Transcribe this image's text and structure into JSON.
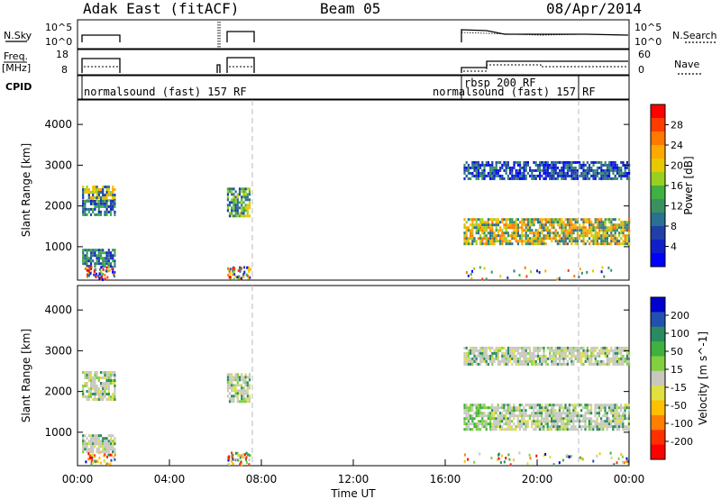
{
  "header": {
    "station": "Adak East (fitACF)",
    "beam": "Beam 05",
    "date": "08/Apr/2014"
  },
  "status_panels": {
    "nsky_label": "N.Sky",
    "nsearch_label": "N.Search",
    "nsky_ticks": [
      "10^5",
      "10^0"
    ],
    "nsearch_ticks": [
      "10^5",
      "10^0"
    ],
    "freq_label": "Freq.",
    "freq_unit": "[MHz]",
    "freq_ticks": [
      "18",
      "8"
    ],
    "nave_label": "Nave",
    "nave_ticks": [
      "60",
      "0"
    ],
    "cpid_label": "CPID",
    "cpid_segments": [
      {
        "label": "normalsound (fast) 157 RF",
        "start_h": 0.0
      },
      {
        "label": "normalsound (fast) 157 RF",
        "start_h": 17.25
      },
      {
        "label": "rbsp 200 RF",
        "start_h": 16.75
      }
    ]
  },
  "power_colorbar": {
    "title": "Power [dB]",
    "ticks": [
      "28",
      "24",
      "20",
      "16",
      "12",
      "8",
      "4"
    ],
    "colors": [
      "#ff0000",
      "#ff3c00",
      "#ff7800",
      "#ffa800",
      "#e8c800",
      "#98d020",
      "#40b040",
      "#3a9060",
      "#2a7090",
      "#2040a8",
      "#1020c8",
      "#0000ff"
    ]
  },
  "velocity_colorbar": {
    "title": "Velocity [m s^-1]",
    "ticks": [
      "200",
      "100",
      "50",
      "15",
      "-15",
      "-50",
      "-100",
      "-200"
    ],
    "colors": [
      "#0000d0",
      "#2050b0",
      "#2a8a60",
      "#40b040",
      "#80d040",
      "#c8c8c0",
      "#e0e040",
      "#ffc000",
      "#ff8000",
      "#ff3000",
      "#ff0000"
    ]
  },
  "chart_data": [
    {
      "type": "heatmap",
      "title": "Power",
      "xlabel": "",
      "ylabel": "Slant Range [km]",
      "ylim": [
        180,
        4600
      ],
      "xlim_hours": [
        0,
        24
      ],
      "yticks": [
        "1000",
        "2000",
        "3000",
        "4000"
      ],
      "echo_regions": [
        {
          "t0": 0.2,
          "t1": 1.6,
          "r0": 2150,
          "r1": 2500,
          "level": "16-20 dB"
        },
        {
          "t0": 0.2,
          "t1": 1.6,
          "r0": 1800,
          "r1": 2150,
          "level": "8-16 dB"
        },
        {
          "t0": 0.2,
          "t1": 1.6,
          "r0": 500,
          "r1": 950,
          "level": "8-16 dB"
        },
        {
          "t0": 6.5,
          "t1": 7.5,
          "r0": 1750,
          "r1": 2450,
          "level": "12-20 dB"
        },
        {
          "t0": 16.8,
          "t1": 24.0,
          "r0": 1100,
          "r1": 1700,
          "level": "16-28 dB"
        },
        {
          "t0": 16.8,
          "t1": 24.0,
          "r0": 2650,
          "r1": 3100,
          "level": "4-12 dB"
        }
      ]
    },
    {
      "type": "heatmap",
      "title": "Velocity",
      "xlabel": "Time UT",
      "ylabel": "Slant Range [km]",
      "ylim": [
        180,
        4600
      ],
      "xlim_hours": [
        0,
        24
      ],
      "yticks": [
        "1000",
        "2000",
        "3000",
        "4000"
      ],
      "xticks": [
        "00:00",
        "04:00",
        "08:00",
        "12:00",
        "16:00",
        "20:00",
        "00:00"
      ],
      "echo_regions": [
        {
          "t0": 0.2,
          "t1": 1.6,
          "r0": 1800,
          "r1": 2500,
          "level": "-15 to 15 m/s"
        },
        {
          "t0": 0.2,
          "t1": 1.6,
          "r0": 500,
          "r1": 950,
          "level": "-15 to 15 m/s"
        },
        {
          "t0": 6.5,
          "t1": 7.5,
          "r0": 1750,
          "r1": 2450,
          "level": "-15 to 15 m/s"
        },
        {
          "t0": 16.8,
          "t1": 18.0,
          "r0": 1100,
          "r1": 1700,
          "level": "15 to 50 m/s"
        },
        {
          "t0": 18.0,
          "t1": 24.0,
          "r0": 1100,
          "r1": 1700,
          "level": "-15 to 15 m/s"
        },
        {
          "t0": 16.8,
          "t1": 24.0,
          "r0": 2650,
          "r1": 3100,
          "level": "-15 to 15 m/s"
        }
      ]
    }
  ]
}
